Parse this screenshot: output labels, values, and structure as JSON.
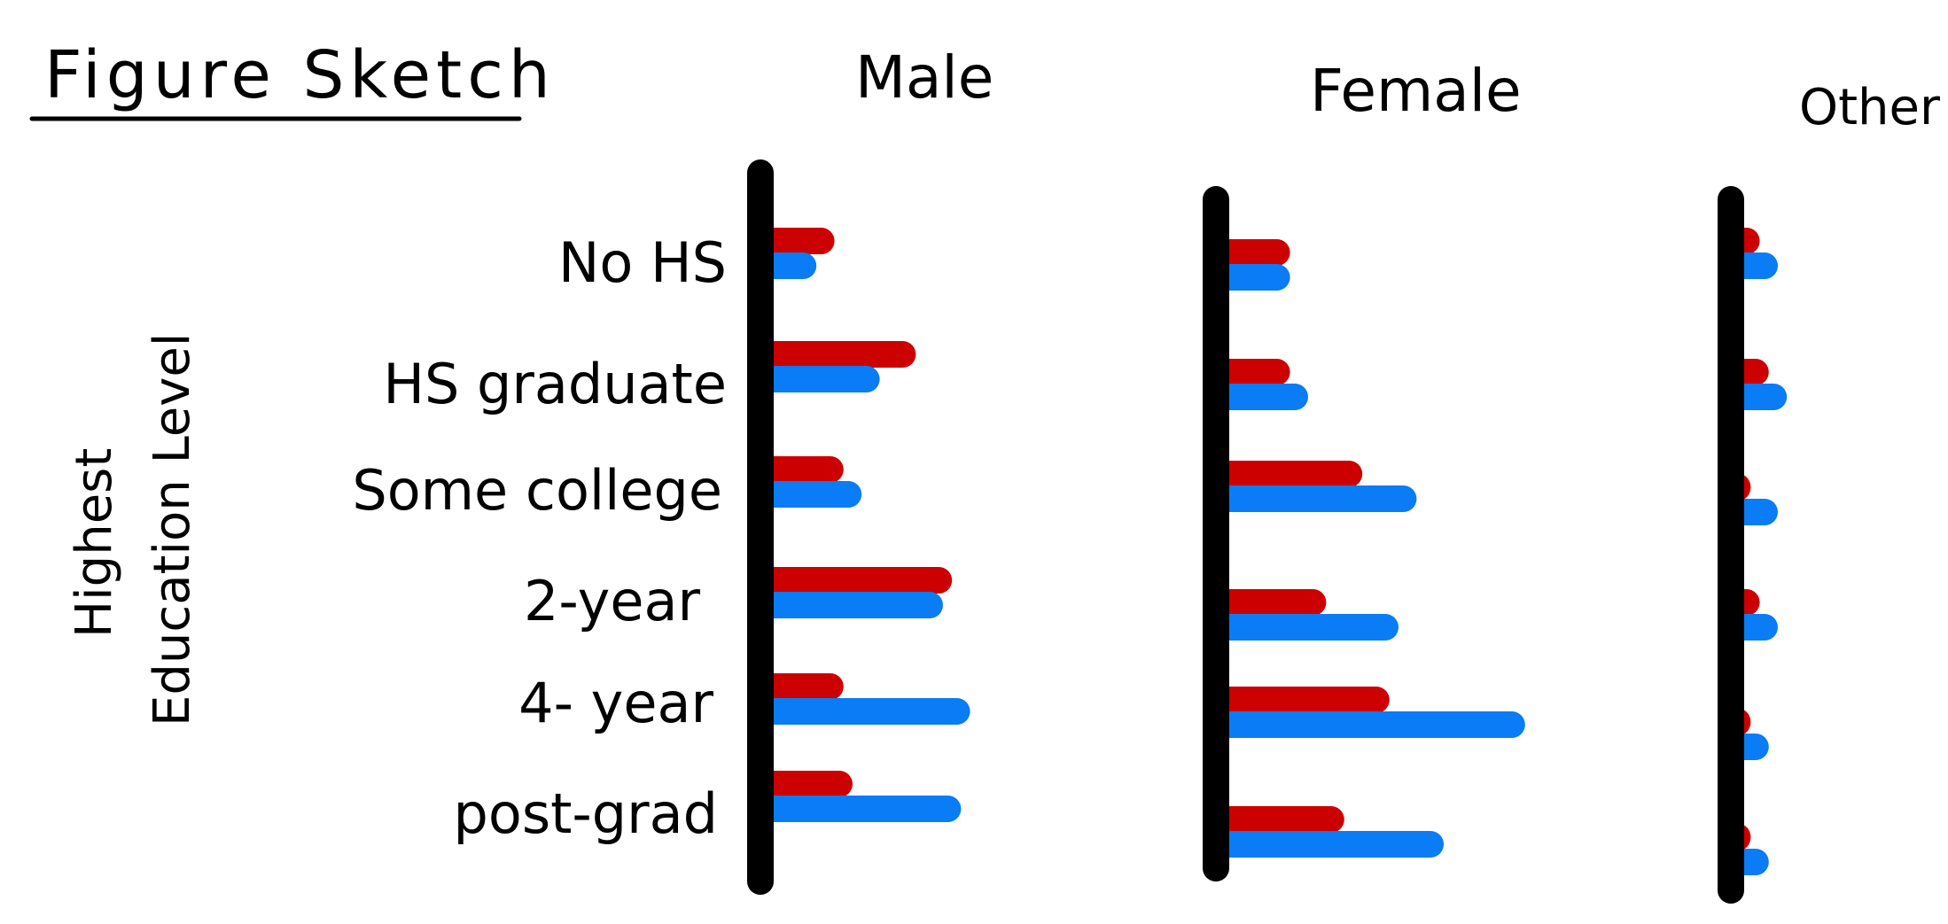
{
  "title": "Figure Sketch",
  "colors": {
    "series_a": "#cc0000",
    "series_b": "#0a7cf5",
    "axis": "#000000"
  },
  "chart_data": {
    "type": "bar",
    "orientation": "horizontal",
    "sketch": true,
    "ylabel_lines": [
      "Highest",
      "Education Level"
    ],
    "categories": [
      "No HS",
      "HS graduate",
      "Some college",
      "2-year",
      "4- year",
      "post-grad"
    ],
    "panels": [
      {
        "title": "Male",
        "series": [
          {
            "color": "red",
            "values": [
              8,
              17,
              9,
              21,
              9,
              10
            ]
          },
          {
            "color": "blue",
            "values": [
              6,
              13,
              11,
              20,
              23,
              22
            ]
          }
        ]
      },
      {
        "title": "Female",
        "series": [
          {
            "color": "red",
            "values": [
              8,
              8,
              16,
              12,
              19,
              14
            ]
          },
          {
            "color": "blue",
            "values": [
              8,
              10,
              22,
              20,
              34,
              25
            ]
          }
        ]
      },
      {
        "title": "Other",
        "series": [
          {
            "color": "red",
            "values": [
              3,
              4,
              2,
              3,
              2,
              2
            ]
          },
          {
            "color": "blue",
            "values": [
              5,
              6,
              5,
              5,
              4,
              4
            ]
          }
        ]
      }
    ]
  }
}
